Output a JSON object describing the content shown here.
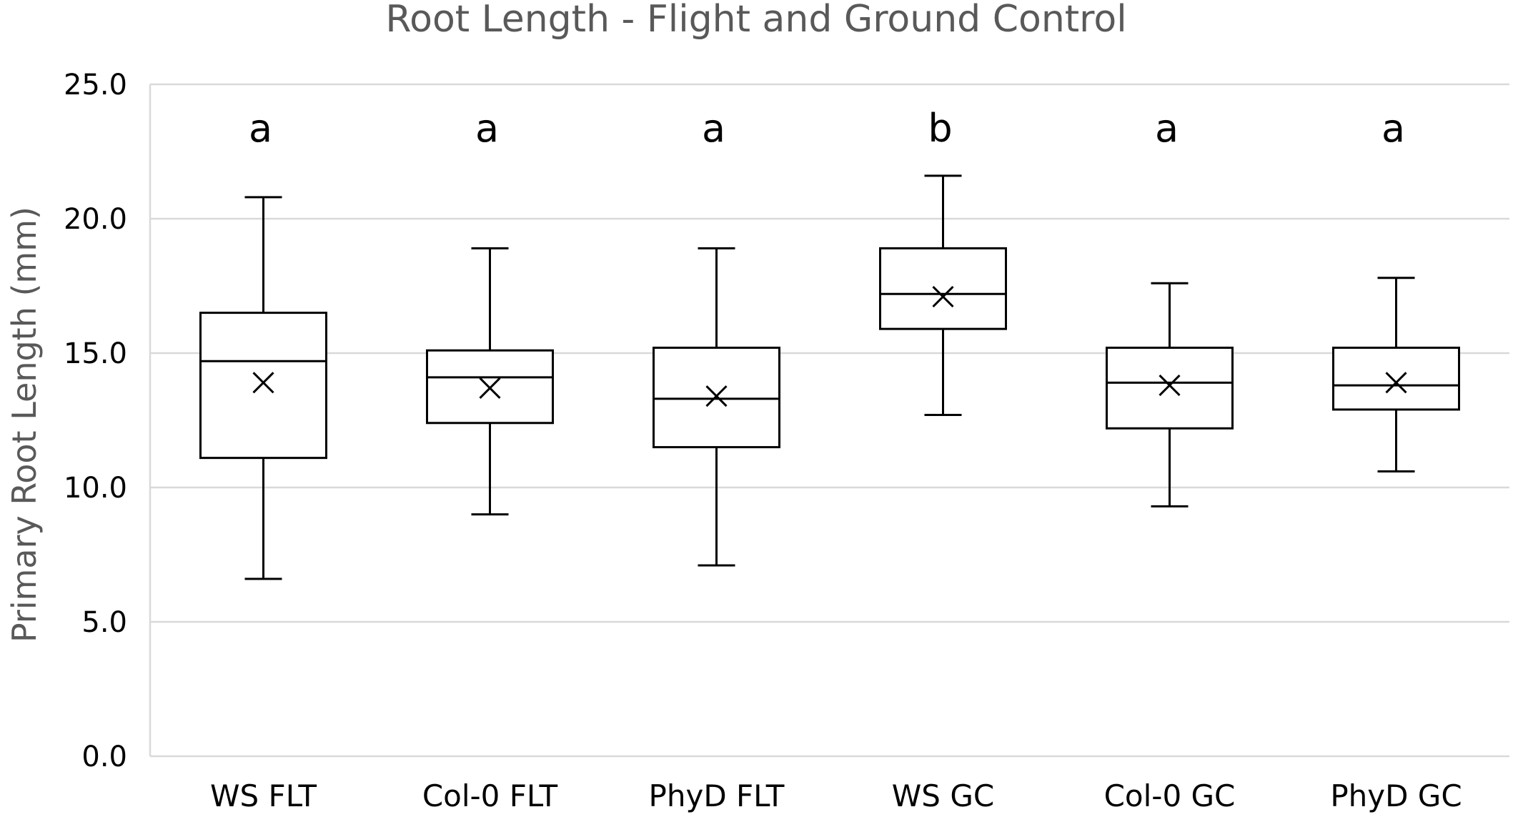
{
  "chart_data": {
    "type": "box",
    "title": "Root Length - Flight and Ground Control",
    "xlabel": "",
    "ylabel": "Primary Root Length (mm)",
    "ylim": [
      0,
      25
    ],
    "yticks": [
      "0.0",
      "5.0",
      "10.0",
      "15.0",
      "20.0",
      "25.0"
    ],
    "ytick_values": [
      0,
      5,
      10,
      15,
      20,
      25
    ],
    "grid": "horizontal",
    "legend": "none",
    "categories": [
      "WS FLT",
      "Col-0 FLT",
      "PhyD FLT",
      "WS GC",
      "Col-0 GC",
      "PhyD GC"
    ],
    "significance": [
      "a",
      "a",
      "a",
      "b",
      "a",
      "a"
    ],
    "boxes": [
      {
        "min": 6.6,
        "q1": 11.1,
        "median": 14.7,
        "q3": 16.5,
        "max": 20.8,
        "mean": 13.9
      },
      {
        "min": 9.0,
        "q1": 12.4,
        "median": 14.1,
        "q3": 15.1,
        "max": 18.9,
        "mean": 13.7
      },
      {
        "min": 7.1,
        "q1": 11.5,
        "median": 13.3,
        "q3": 15.2,
        "max": 18.9,
        "mean": 13.4
      },
      {
        "min": 12.7,
        "q1": 15.9,
        "median": 17.2,
        "q3": 18.9,
        "max": 21.6,
        "mean": 17.1
      },
      {
        "min": 9.3,
        "q1": 12.2,
        "median": 13.9,
        "q3": 15.2,
        "max": 17.6,
        "mean": 13.8
      },
      {
        "min": 10.6,
        "q1": 12.9,
        "median": 13.8,
        "q3": 15.2,
        "max": 17.8,
        "mean": 13.9
      }
    ],
    "colors": {
      "box_stroke": "#000000",
      "grid": "#d9d9d9",
      "axis_text": "#595959"
    }
  }
}
